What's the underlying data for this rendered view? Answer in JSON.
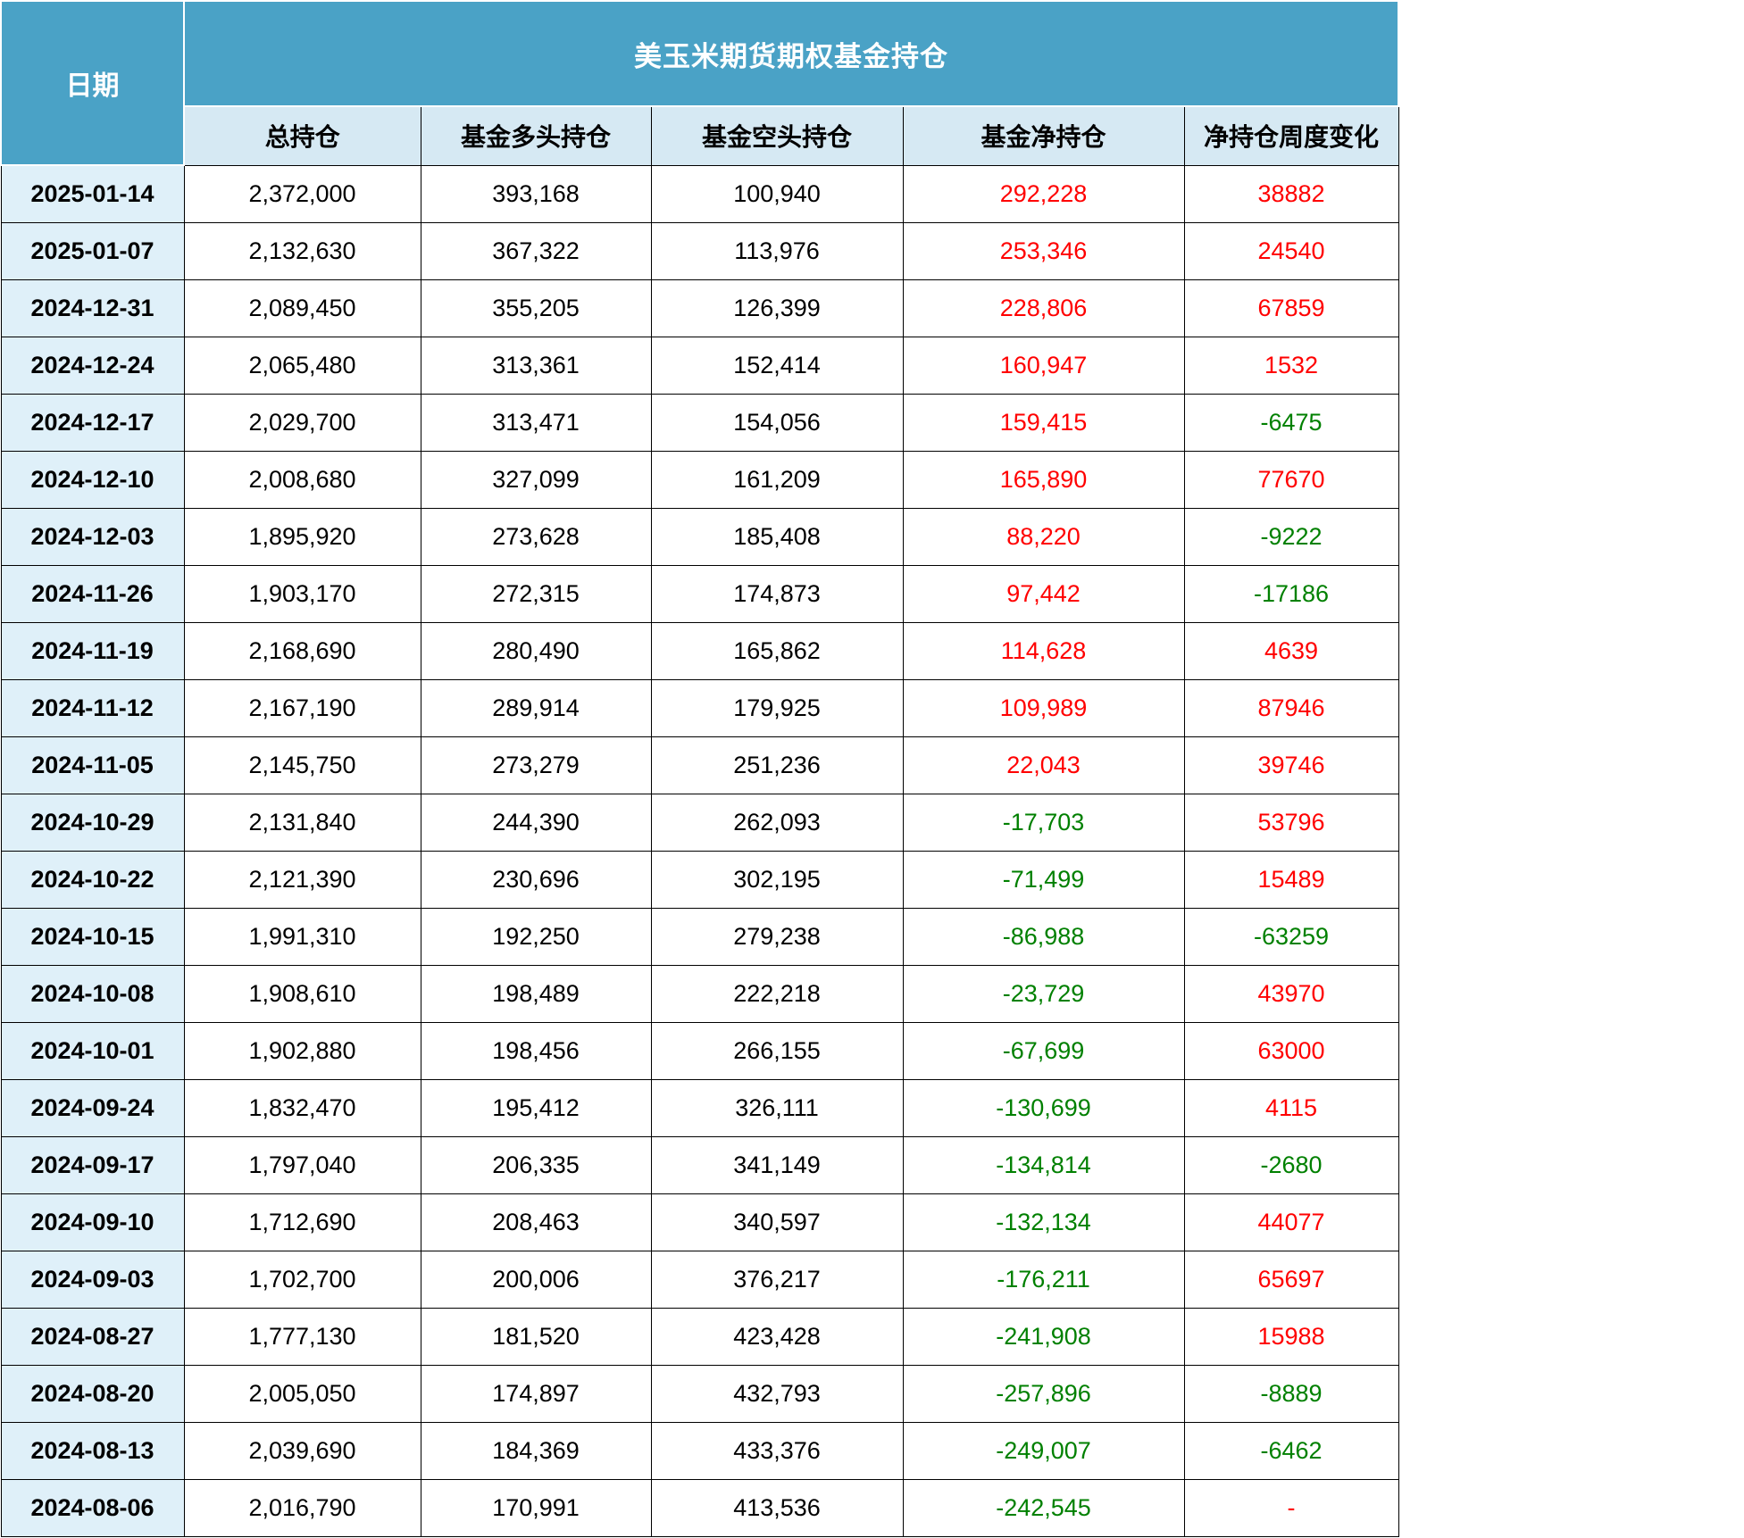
{
  "table": {
    "date_header": "日期",
    "title": "美玉米期货期权基金持仓",
    "columns": [
      "总持仓",
      "基金多头持仓",
      "基金空头持仓",
      "基金净持仓",
      "净持仓周度变化"
    ],
    "rows": [
      {
        "date": "2025-01-14",
        "total": "2,372,000",
        "long": "393,168",
        "short": "100,940",
        "net": "292,228",
        "net_color": "red",
        "change": "38882",
        "change_color": "red"
      },
      {
        "date": "2025-01-07",
        "total": "2,132,630",
        "long": "367,322",
        "short": "113,976",
        "net": "253,346",
        "net_color": "red",
        "change": "24540",
        "change_color": "red"
      },
      {
        "date": "2024-12-31",
        "total": "2,089,450",
        "long": "355,205",
        "short": "126,399",
        "net": "228,806",
        "net_color": "red",
        "change": "67859",
        "change_color": "red"
      },
      {
        "date": "2024-12-24",
        "total": "2,065,480",
        "long": "313,361",
        "short": "152,414",
        "net": "160,947",
        "net_color": "red",
        "change": "1532",
        "change_color": "red"
      },
      {
        "date": "2024-12-17",
        "total": "2,029,700",
        "long": "313,471",
        "short": "154,056",
        "net": "159,415",
        "net_color": "red",
        "change": "-6475",
        "change_color": "green"
      },
      {
        "date": "2024-12-10",
        "total": "2,008,680",
        "long": "327,099",
        "short": "161,209",
        "net": "165,890",
        "net_color": "red",
        "change": "77670",
        "change_color": "red"
      },
      {
        "date": "2024-12-03",
        "total": "1,895,920",
        "long": "273,628",
        "short": "185,408",
        "net": "88,220",
        "net_color": "red",
        "change": "-9222",
        "change_color": "green"
      },
      {
        "date": "2024-11-26",
        "total": "1,903,170",
        "long": "272,315",
        "short": "174,873",
        "net": "97,442",
        "net_color": "red",
        "change": "-17186",
        "change_color": "green"
      },
      {
        "date": "2024-11-19",
        "total": "2,168,690",
        "long": "280,490",
        "short": "165,862",
        "net": "114,628",
        "net_color": "red",
        "change": "4639",
        "change_color": "red"
      },
      {
        "date": "2024-11-12",
        "total": "2,167,190",
        "long": "289,914",
        "short": "179,925",
        "net": "109,989",
        "net_color": "red",
        "change": "87946",
        "change_color": "red"
      },
      {
        "date": "2024-11-05",
        "total": "2,145,750",
        "long": "273,279",
        "short": "251,236",
        "net": "22,043",
        "net_color": "red",
        "change": "39746",
        "change_color": "red"
      },
      {
        "date": "2024-10-29",
        "total": "2,131,840",
        "long": "244,390",
        "short": "262,093",
        "net": "-17,703",
        "net_color": "green",
        "change": "53796",
        "change_color": "red"
      },
      {
        "date": "2024-10-22",
        "total": "2,121,390",
        "long": "230,696",
        "short": "302,195",
        "net": "-71,499",
        "net_color": "green",
        "change": "15489",
        "change_color": "red"
      },
      {
        "date": "2024-10-15",
        "total": "1,991,310",
        "long": "192,250",
        "short": "279,238",
        "net": "-86,988",
        "net_color": "green",
        "change": "-63259",
        "change_color": "green"
      },
      {
        "date": "2024-10-08",
        "total": "1,908,610",
        "long": "198,489",
        "short": "222,218",
        "net": "-23,729",
        "net_color": "green",
        "change": "43970",
        "change_color": "red"
      },
      {
        "date": "2024-10-01",
        "total": "1,902,880",
        "long": "198,456",
        "short": "266,155",
        "net": "-67,699",
        "net_color": "green",
        "change": "63000",
        "change_color": "red"
      },
      {
        "date": "2024-09-24",
        "total": "1,832,470",
        "long": "195,412",
        "short": "326,111",
        "net": "-130,699",
        "net_color": "green",
        "change": "4115",
        "change_color": "red"
      },
      {
        "date": "2024-09-17",
        "total": "1,797,040",
        "long": "206,335",
        "short": "341,149",
        "net": "-134,814",
        "net_color": "green",
        "change": "-2680",
        "change_color": "green"
      },
      {
        "date": "2024-09-10",
        "total": "1,712,690",
        "long": "208,463",
        "short": "340,597",
        "net": "-132,134",
        "net_color": "green",
        "change": "44077",
        "change_color": "red"
      },
      {
        "date": "2024-09-03",
        "total": "1,702,700",
        "long": "200,006",
        "short": "376,217",
        "net": "-176,211",
        "net_color": "green",
        "change": "65697",
        "change_color": "red"
      },
      {
        "date": "2024-08-27",
        "total": "1,777,130",
        "long": "181,520",
        "short": "423,428",
        "net": "-241,908",
        "net_color": "green",
        "change": "15988",
        "change_color": "red"
      },
      {
        "date": "2024-08-20",
        "total": "2,005,050",
        "long": "174,897",
        "short": "432,793",
        "net": "-257,896",
        "net_color": "green",
        "change": "-8889",
        "change_color": "green"
      },
      {
        "date": "2024-08-13",
        "total": "2,039,690",
        "long": "184,369",
        "short": "433,376",
        "net": "-249,007",
        "net_color": "green",
        "change": "-6462",
        "change_color": "green"
      },
      {
        "date": "2024-08-06",
        "total": "2,016,790",
        "long": "170,991",
        "short": "413,536",
        "net": "-242,545",
        "net_color": "green",
        "change": "-",
        "change_color": "red"
      }
    ]
  },
  "colors": {
    "header_bg": "#4AA2C6",
    "header_text": "#FFFFFF",
    "subheader_bg": "#D6E9F3",
    "date_cell_bg": "#DFF0F9",
    "positive_red": "#FF0000",
    "negative_green": "#008000",
    "border": "#000000"
  },
  "chart_data": {
    "type": "table",
    "title": "美玉米期货期权基金持仓",
    "columns": [
      "日期",
      "总持仓",
      "基金多头持仓",
      "基金空头持仓",
      "基金净持仓",
      "净持仓周度变化"
    ],
    "rows": [
      [
        "2025-01-14",
        2372000,
        393168,
        100940,
        292228,
        38882
      ],
      [
        "2025-01-07",
        2132630,
        367322,
        113976,
        253346,
        24540
      ],
      [
        "2024-12-31",
        2089450,
        355205,
        126399,
        228806,
        67859
      ],
      [
        "2024-12-24",
        2065480,
        313361,
        152414,
        160947,
        1532
      ],
      [
        "2024-12-17",
        2029700,
        313471,
        154056,
        159415,
        -6475
      ],
      [
        "2024-12-10",
        2008680,
        327099,
        161209,
        165890,
        77670
      ],
      [
        "2024-12-03",
        1895920,
        273628,
        185408,
        88220,
        -9222
      ],
      [
        "2024-11-26",
        1903170,
        272315,
        174873,
        97442,
        -17186
      ],
      [
        "2024-11-19",
        2168690,
        280490,
        165862,
        114628,
        4639
      ],
      [
        "2024-11-12",
        2167190,
        289914,
        179925,
        109989,
        87946
      ],
      [
        "2024-11-05",
        2145750,
        273279,
        251236,
        22043,
        39746
      ],
      [
        "2024-10-29",
        2131840,
        244390,
        262093,
        -17703,
        53796
      ],
      [
        "2024-10-22",
        2121390,
        230696,
        302195,
        -71499,
        15489
      ],
      [
        "2024-10-15",
        1991310,
        192250,
        279238,
        -86988,
        -63259
      ],
      [
        "2024-10-08",
        1908610,
        198489,
        222218,
        -23729,
        43970
      ],
      [
        "2024-10-01",
        1902880,
        198456,
        266155,
        -67699,
        63000
      ],
      [
        "2024-09-24",
        1832470,
        195412,
        326111,
        -130699,
        4115
      ],
      [
        "2024-09-17",
        1797040,
        206335,
        341149,
        -134814,
        -2680
      ],
      [
        "2024-09-10",
        1712690,
        208463,
        340597,
        -132134,
        44077
      ],
      [
        "2024-09-03",
        1702700,
        200006,
        376217,
        -176211,
        65697
      ],
      [
        "2024-08-27",
        1777130,
        181520,
        423428,
        -241908,
        15988
      ],
      [
        "2024-08-20",
        2005050,
        174897,
        432793,
        -257896,
        -8889
      ],
      [
        "2024-08-13",
        2039690,
        184369,
        433376,
        -249007,
        -6462
      ],
      [
        "2024-08-06",
        2016790,
        170991,
        413536,
        -242545,
        null
      ]
    ]
  }
}
